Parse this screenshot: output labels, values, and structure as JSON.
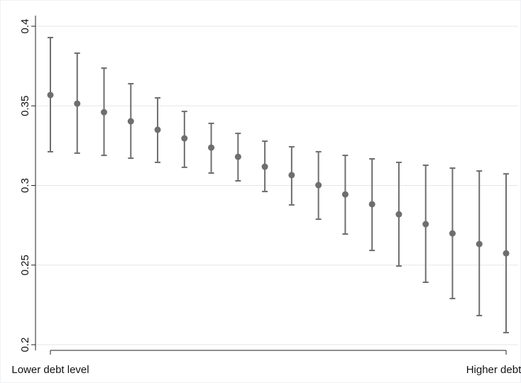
{
  "chart_data": {
    "type": "errorbar",
    "categories": [
      "Lower debt level",
      null,
      null,
      null,
      null,
      null,
      null,
      null,
      null,
      null,
      null,
      null,
      null,
      null,
      null,
      null,
      null,
      "Higher debt level"
    ],
    "series": [
      {
        "color": "#6e6e6e",
        "values": [
          0.3568,
          0.3514,
          0.346,
          0.3403,
          0.335,
          0.3296,
          0.3238,
          0.318,
          0.3118,
          0.3065,
          0.3002,
          0.2944,
          0.2882,
          0.2819,
          0.2757,
          0.2699,
          0.2632,
          0.2574
        ],
        "lower": [
          0.3212,
          0.3203,
          0.3189,
          0.3171,
          0.3145,
          0.3114,
          0.3078,
          0.3029,
          0.2962,
          0.2878,
          0.2788,
          0.2695,
          0.2592,
          0.2494,
          0.2392,
          0.229,
          0.2183,
          0.2076
        ],
        "upper": [
          0.3929,
          0.3831,
          0.3737,
          0.3639,
          0.355,
          0.3465,
          0.339,
          0.3327,
          0.3278,
          0.3243,
          0.3212,
          0.3189,
          0.3167,
          0.3145,
          0.3127,
          0.3109,
          0.3091,
          0.3073
        ]
      }
    ],
    "ylim": [
      0.2,
      0.4
    ],
    "yticks": [
      0.2,
      0.25,
      0.3,
      0.35,
      0.4
    ],
    "grid": true
  }
}
